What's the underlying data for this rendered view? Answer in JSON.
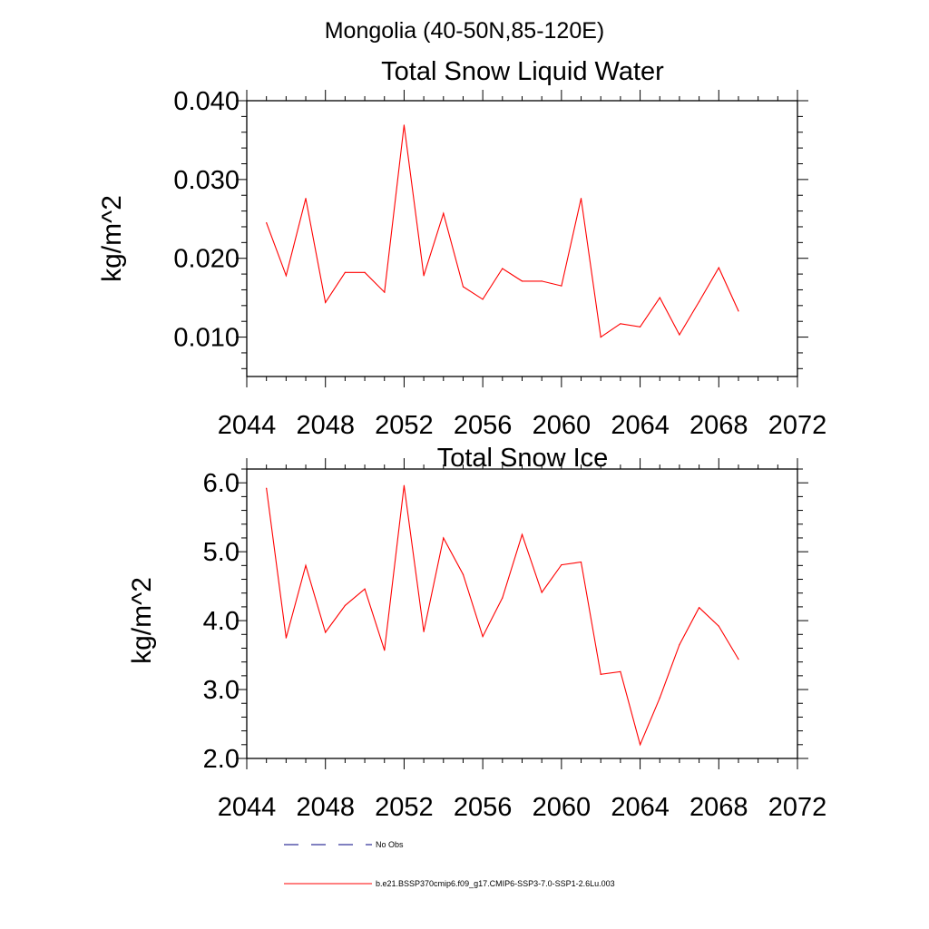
{
  "suptitle": "Mongolia (40-50N,85-120E)",
  "line_color": "#ff0000",
  "obs_color": "#000080",
  "chart_data": [
    {
      "type": "line",
      "title": "Total Snow Liquid Water",
      "ylabel": "kg/m^2",
      "xlim": [
        2044,
        2072
      ],
      "ylim": [
        0.005,
        0.04
      ],
      "xticks": [
        2044,
        2048,
        2052,
        2056,
        2060,
        2064,
        2068,
        2072
      ],
      "yticks": [
        0.01,
        0.02,
        0.03,
        0.04
      ],
      "xtick_labels": [
        "2044",
        "2048",
        "2052",
        "2056",
        "2060",
        "2064",
        "2068",
        "2072"
      ],
      "ytick_labels": [
        "0.010",
        "0.020",
        "0.030",
        "0.040"
      ],
      "x": [
        2045,
        2046,
        2047,
        2048,
        2049,
        2050,
        2051,
        2052,
        2053,
        2054,
        2055,
        2056,
        2057,
        2058,
        2059,
        2060,
        2061,
        2062,
        2063,
        2064,
        2065,
        2066,
        2067,
        2068,
        2069
      ],
      "series": [
        {
          "values": [
            0.0245,
            0.0178,
            0.0276,
            0.0144,
            0.0182,
            0.0182,
            0.0157,
            0.0369,
            0.0178,
            0.0257,
            0.0164,
            0.0148,
            0.0187,
            0.0171,
            0.0171,
            0.0165,
            0.0276,
            0.01,
            0.0117,
            0.0113,
            0.015,
            0.0103,
            0.0145,
            0.0188,
            0.0133
          ]
        }
      ]
    },
    {
      "type": "line",
      "title": "Total Snow Ice",
      "ylabel": "kg/m^2",
      "xlim": [
        2044,
        2072
      ],
      "ylim": [
        2.0,
        6.2
      ],
      "xticks": [
        2044,
        2048,
        2052,
        2056,
        2060,
        2064,
        2068,
        2072
      ],
      "yticks": [
        2.0,
        3.0,
        4.0,
        5.0,
        6.0
      ],
      "xtick_labels": [
        "2044",
        "2048",
        "2052",
        "2056",
        "2060",
        "2064",
        "2068",
        "2072"
      ],
      "ytick_labels": [
        "2.0",
        "3.0",
        "4.0",
        "5.0",
        "6.0"
      ],
      "x": [
        2045,
        2046,
        2047,
        2048,
        2049,
        2050,
        2051,
        2052,
        2053,
        2054,
        2055,
        2056,
        2057,
        2058,
        2059,
        2060,
        2061,
        2062,
        2063,
        2064,
        2065,
        2066,
        2067,
        2068,
        2069
      ],
      "series": [
        {
          "values": [
            5.92,
            3.75,
            4.8,
            3.83,
            4.22,
            4.46,
            3.57,
            5.96,
            3.84,
            5.2,
            4.67,
            3.77,
            4.33,
            5.25,
            4.41,
            4.81,
            4.85,
            3.22,
            3.26,
            2.2,
            2.88,
            3.65,
            4.19,
            3.92,
            3.44
          ]
        }
      ]
    }
  ],
  "legend": [
    {
      "label": "No Obs",
      "style": "dashed"
    },
    {
      "label": "b.e21.BSSP370cmip6.f09_g17.CMIP6-SSP3-7.0-SSP1-2.6Lu.003",
      "style": "solid"
    }
  ]
}
